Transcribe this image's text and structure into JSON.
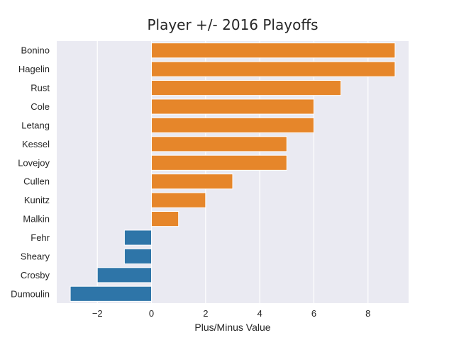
{
  "chart_data": {
    "type": "bar",
    "orientation": "horizontal",
    "title": "Player +/- 2016 Playoffs",
    "xlabel": "Plus/Minus Value",
    "ylabel": "",
    "categories": [
      "Bonino",
      "Hagelin",
      "Rust",
      "Cole",
      "Letang",
      "Kessel",
      "Lovejoy",
      "Cullen",
      "Kunitz",
      "Malkin",
      "Fehr",
      "Sheary",
      "Crosby",
      "Dumoulin"
    ],
    "values": [
      9,
      9,
      7,
      6,
      6,
      5,
      5,
      3,
      2,
      1,
      -1,
      -1,
      -2,
      -3
    ],
    "xlim": [
      -3.5,
      9.5
    ],
    "xticks": [
      -2,
      0,
      2,
      4,
      6,
      8
    ],
    "xtick_labels": [
      "−2",
      "0",
      "2",
      "4",
      "6",
      "8"
    ],
    "colors": {
      "positive": "#e6862a",
      "negative": "#2e75a8",
      "plot_background": "#eaeaf2",
      "grid": "#ffffff"
    },
    "grid": "vertical",
    "legend": "none"
  }
}
